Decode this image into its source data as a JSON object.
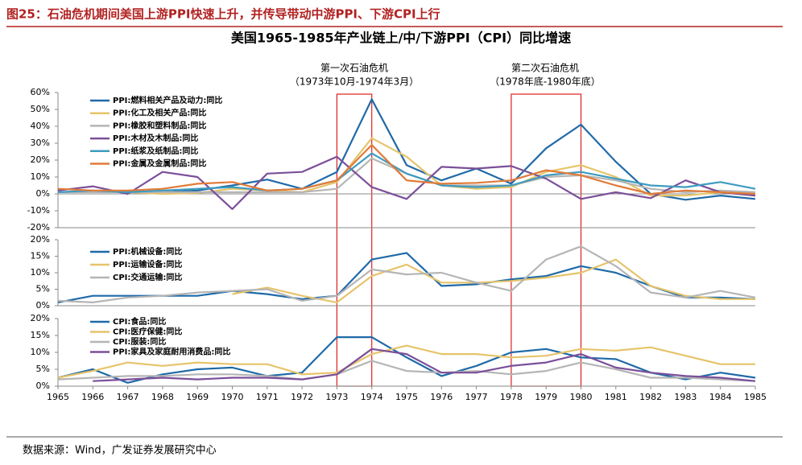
{
  "header": {
    "title": "图25：石油危机期间美国上游PPI快速上升，并传导带动中游PPI、下游CPI上行"
  },
  "source": "数据来源：Wind，广发证券发展研究中心",
  "chart_data": [
    {
      "type": "line",
      "title": "美国1965-1985年产业链上/中/下游PPI（CPI）同比增速",
      "annotations": [
        "第一次石油危机",
        "（1973年10月-1974年3月）",
        "第二次石油危机",
        "（1978年底-1980年底）"
      ],
      "highlights": [
        {
          "from": 1973,
          "to": 1974
        },
        {
          "from": 1978,
          "to": 1980
        }
      ],
      "highlight_color": "#e02020",
      "ylim": [
        -20,
        60
      ],
      "yticks": [
        {
          "value": 60,
          "label": "60%"
        },
        {
          "value": 50,
          "label": "50%"
        },
        {
          "value": 40,
          "label": "40%"
        },
        {
          "value": 30,
          "label": "30%"
        },
        {
          "value": 20,
          "label": "20%"
        },
        {
          "value": 10,
          "label": "10%"
        },
        {
          "value": 0,
          "label": "0%"
        },
        {
          "value": -10,
          "label": "-10%"
        },
        {
          "value": -20,
          "label": "-20%"
        }
      ],
      "series": [
        {
          "name": "PPI:燃料相关产品及动力:同比",
          "color": "#1f6aa8",
          "values": [
            1,
            1,
            1.5,
            1,
            2,
            5,
            8.5,
            3,
            13,
            56,
            17,
            8,
            15,
            6,
            27,
            41,
            19,
            0,
            -3.5,
            -1,
            -3
          ]
        },
        {
          "name": "PPI:化工及相关产品:同比",
          "color": "#e6c46b",
          "values": [
            1,
            1,
            1,
            0,
            0.5,
            3,
            2,
            1,
            7,
            33,
            22,
            5,
            3,
            4,
            13,
            17,
            10,
            -1,
            -1,
            1,
            -1
          ]
        },
        {
          "name": "PPI:橡胶和塑料制品:同比",
          "color": "#b5b5b5",
          "values": [
            1,
            1,
            1,
            1,
            1,
            1,
            1,
            1,
            3,
            21,
            12,
            5,
            5,
            5,
            10,
            11,
            8,
            3,
            1,
            2,
            1
          ]
        },
        {
          "name": "PPI:木材及木制品:同比",
          "color": "#7b4f99",
          "values": [
            2,
            4.5,
            0,
            13,
            10,
            -9,
            12,
            13,
            22,
            4,
            -3,
            16,
            15,
            16.5,
            9,
            -3,
            1,
            -2.5,
            8,
            1,
            -1
          ]
        },
        {
          "name": "PPI:纸浆及纸制品:同比",
          "color": "#3f9bbf",
          "values": [
            1,
            2,
            1,
            2,
            3,
            4,
            2,
            3,
            8,
            24,
            12,
            5,
            4,
            5,
            11,
            13,
            9,
            5,
            4,
            7,
            3
          ]
        },
        {
          "name": "PPI:金属及金属制品:同比",
          "color": "#e07b39",
          "values": [
            3,
            2,
            2,
            3,
            6,
            7,
            2,
            3,
            8,
            29,
            8,
            6,
            6.5,
            8,
            14,
            11,
            5,
            0,
            2,
            1,
            0
          ]
        }
      ]
    },
    {
      "type": "line",
      "ylim": [
        0,
        20
      ],
      "yticks": [
        {
          "value": 20,
          "label": "20%"
        },
        {
          "value": 15,
          "label": "15%"
        },
        {
          "value": 10,
          "label": "10%"
        },
        {
          "value": 5,
          "label": "5%"
        },
        {
          "value": 0,
          "label": "0%"
        }
      ],
      "series": [
        {
          "name": "PPI:机械设备:同比",
          "color": "#1f6aa8",
          "values": [
            1,
            3,
            3,
            3,
            3,
            4.5,
            3.5,
            2,
            3,
            14,
            16,
            6,
            6.5,
            8,
            9,
            12,
            10,
            6,
            2.5,
            2.5,
            2
          ]
        },
        {
          "name": "PPI:运输设备:同比",
          "color": "#e6c46b",
          "values": [
            null,
            null,
            null,
            null,
            null,
            3.5,
            5.5,
            3,
            1,
            9,
            12.5,
            7,
            7,
            7.5,
            8.5,
            10,
            14,
            6,
            3,
            2,
            2
          ]
        },
        {
          "name": "CPI:交通运输:同比",
          "color": "#b5b5b5",
          "values": [
            1.5,
            1,
            2.5,
            3,
            4,
            4.5,
            5,
            1.5,
            3,
            11,
            9.5,
            10,
            7,
            4.5,
            14,
            18,
            12,
            4,
            2.5,
            4.5,
            2.5
          ]
        }
      ]
    },
    {
      "type": "line",
      "ylim": [
        0,
        20
      ],
      "yticks": [
        {
          "value": 20,
          "label": "20%"
        },
        {
          "value": 15,
          "label": "15%"
        },
        {
          "value": 10,
          "label": "10%"
        },
        {
          "value": 5,
          "label": "5%"
        },
        {
          "value": 0,
          "label": "0%"
        }
      ],
      "x": [
        1965,
        1966,
        1967,
        1968,
        1969,
        1970,
        1971,
        1972,
        1973,
        1974,
        1975,
        1976,
        1977,
        1978,
        1979,
        1980,
        1981,
        1982,
        1983,
        1984,
        1985
      ],
      "xlim": [
        1965,
        1985
      ],
      "xticks": [
        1965,
        1966,
        1967,
        1968,
        1969,
        1970,
        1971,
        1972,
        1973,
        1974,
        1975,
        1976,
        1977,
        1978,
        1979,
        1980,
        1981,
        1982,
        1983,
        1984,
        1985
      ],
      "series": [
        {
          "name": "CPI:食品:同比",
          "color": "#1f6aa8",
          "values": [
            2.5,
            5,
            1,
            3.5,
            5,
            5.5,
            3,
            4,
            14.5,
            14.5,
            8.5,
            3,
            6,
            10,
            11,
            8.5,
            8,
            4,
            2,
            4,
            2.5
          ]
        },
        {
          "name": "CPI:医疗保健:同比",
          "color": "#e6c46b",
          "values": [
            2.5,
            4.5,
            7,
            6,
            7,
            6.5,
            6.5,
            3.5,
            4,
            9.5,
            12,
            9.5,
            9.5,
            8.5,
            9,
            11,
            10.5,
            11.5,
            9,
            6.5,
            6.5
          ]
        },
        {
          "name": "CPI:服装:同比",
          "color": "#b5b5b5",
          "values": [
            2,
            2.5,
            3,
            3,
            3.5,
            3.5,
            3,
            2,
            3.5,
            7.5,
            4.5,
            4,
            4.5,
            3.5,
            4.5,
            7,
            5,
            2.5,
            2.5,
            2,
            1.5
          ]
        },
        {
          "name": "PPI:家具及家庭耐用消费品:同比",
          "color": "#7b4f99",
          "values": [
            null,
            1.5,
            2,
            2.5,
            2,
            2.5,
            2.5,
            2,
            3.5,
            11,
            9.5,
            4,
            4,
            6,
            7,
            9.5,
            5.5,
            4,
            3,
            2.5,
            1.5
          ]
        }
      ]
    }
  ]
}
